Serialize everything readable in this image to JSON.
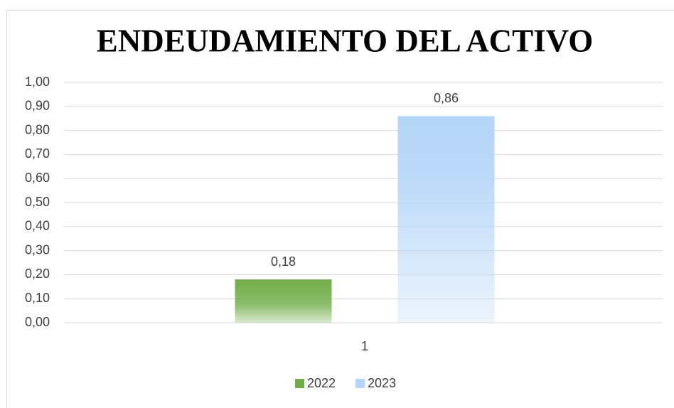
{
  "chart_data": {
    "type": "bar",
    "title": "ENDEUDAMIENTO DEL ACTIVO",
    "categories": [
      "1"
    ],
    "series": [
      {
        "name": "2022",
        "color": "#70ad47",
        "values": [
          0.18
        ],
        "value_labels": [
          "0,18"
        ]
      },
      {
        "name": "2023",
        "color": "#b4d5f7",
        "values": [
          0.86
        ],
        "value_labels": [
          "0,86"
        ]
      }
    ],
    "ylim": [
      0,
      1
    ],
    "yticks": [
      {
        "value": 0,
        "label": "0,00"
      },
      {
        "value": 0.1,
        "label": "0,10"
      },
      {
        "value": 0.2,
        "label": "0,20"
      },
      {
        "value": 0.3,
        "label": "0,30"
      },
      {
        "value": 0.4,
        "label": "0,40"
      },
      {
        "value": 0.5,
        "label": "0,50"
      },
      {
        "value": 0.6,
        "label": "0,60"
      },
      {
        "value": 0.7,
        "label": "0,70"
      },
      {
        "value": 0.8,
        "label": "0,80"
      },
      {
        "value": 0.9,
        "label": "0,90"
      },
      {
        "value": 1,
        "label": "1,00"
      }
    ],
    "grid": true,
    "legend": "bottom"
  }
}
